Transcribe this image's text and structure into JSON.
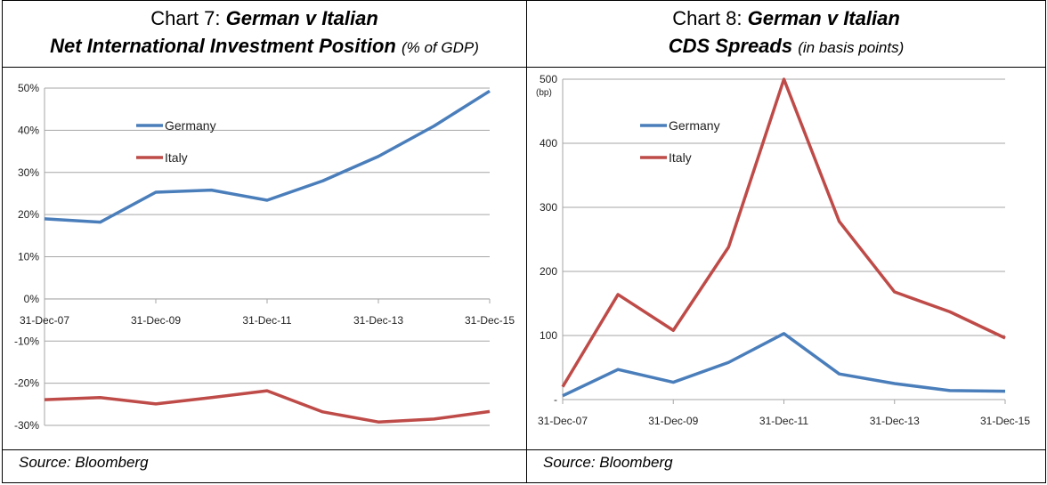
{
  "chart_data": [
    {
      "type": "line",
      "title_prefix": "Chart 7: ",
      "title_bold": "German v Italian",
      "title_line2": "Net International Investment Position",
      "title_unit": "(% of GDP)",
      "x": [
        "31-Dec-07",
        "31-Dec-08",
        "31-Dec-09",
        "31-Dec-10",
        "31-Dec-11",
        "31-Dec-12",
        "31-Dec-13",
        "31-Dec-14",
        "31-Dec-15"
      ],
      "x_tick_labels": [
        "31-Dec-07",
        "31-Dec-09",
        "31-Dec-11",
        "31-Dec-13",
        "31-Dec-15"
      ],
      "y_ticks": [
        "50%",
        "40%",
        "30%",
        "20%",
        "10%",
        "0%",
        "-10%",
        "-20%",
        "-30%"
      ],
      "ylim": [
        -30,
        50
      ],
      "grid": true,
      "legend": "top-left",
      "series": [
        {
          "name": "Germany",
          "color": "#4a7ebb",
          "values": [
            19,
            18.2,
            25.3,
            25.8,
            23.4,
            28,
            33.8,
            41,
            49.3
          ]
        },
        {
          "name": "Italy",
          "color": "#be4b48",
          "values": [
            -23.9,
            -23.4,
            -24.9,
            -23.4,
            -21.8,
            -26.8,
            -29.2,
            -28.5,
            -26.7
          ]
        }
      ],
      "source": "Source: Bloomberg"
    },
    {
      "type": "line",
      "title_prefix": "Chart 8: ",
      "title_bold": "German v Italian",
      "title_line2": "CDS Spreads",
      "title_unit": "(in basis points)",
      "x": [
        "31-Dec-07",
        "31-Dec-08",
        "31-Dec-09",
        "31-Dec-10",
        "31-Dec-11",
        "31-Dec-12",
        "31-Dec-13",
        "31-Dec-14",
        "31-Dec-15"
      ],
      "x_tick_labels": [
        "31-Dec-07",
        "31-Dec-09",
        "31-Dec-11",
        "31-Dec-13",
        "31-Dec-15"
      ],
      "y_ticks": [
        "500",
        "400",
        "300",
        "200",
        "100",
        "-"
      ],
      "y_unit": "(bp)",
      "ylim": [
        0,
        500
      ],
      "grid": true,
      "legend": "top-left",
      "series": [
        {
          "name": "Germany",
          "color": "#4a7ebb",
          "values": [
            6,
            47,
            27,
            58,
            103,
            40,
            25,
            14,
            13
          ]
        },
        {
          "name": "Italy",
          "color": "#be4b48",
          "values": [
            20,
            164,
            108,
            238,
            500,
            278,
            168,
            137,
            96
          ]
        }
      ],
      "source": "Source: Bloomberg"
    }
  ]
}
